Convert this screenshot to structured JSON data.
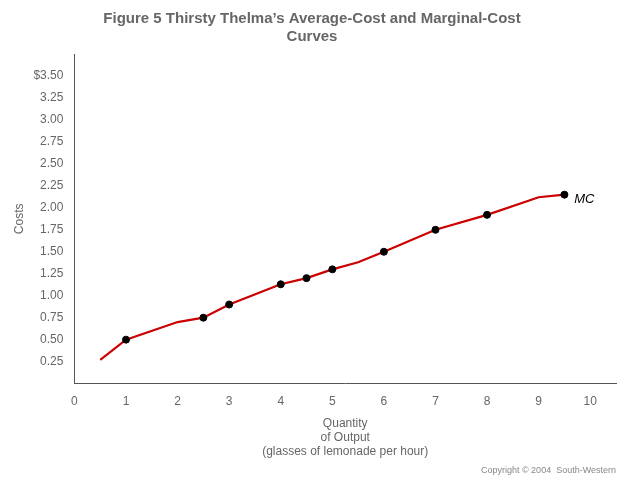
{
  "chart_data": {
    "type": "line",
    "title": "Figure 5 Thirsty Thelma’s Average-Cost and Marginal-Cost\nCurves",
    "ylabel": "Costs",
    "xlabel": [
      "Quantity",
      "of Output",
      "(glasses of lemonade per hour)"
    ],
    "footnote": "Copyright © 2004  South-Western",
    "series": [
      {
        "type": "line",
        "color": "#cc0000",
        "x": [
          0.5,
          1,
          2,
          2.5,
          3,
          4,
          4.5,
          5,
          5.5,
          6,
          7,
          8,
          9,
          9.5
        ],
        "values": [
          0.27,
          0.5,
          0.7,
          0.75,
          0.9,
          1.13,
          1.2,
          1.3,
          1.38,
          1.5,
          1.75,
          1.92,
          2.12,
          2.15
        ]
      },
      {
        "type": "scatter",
        "color": "#000000",
        "x": [
          1,
          2.5,
          3,
          4,
          4.5,
          5,
          6,
          7,
          8,
          9.5
        ],
        "values": [
          0.5,
          0.75,
          0.9,
          1.13,
          1.2,
          1.3,
          1.5,
          1.75,
          1.92,
          2.15
        ]
      }
    ],
    "annotations": [
      {
        "text": "MC",
        "x": 9.65,
        "y": 2.1
      }
    ],
    "xlim": [
      0,
      10.5
    ],
    "ylim": [
      0,
      3.75
    ],
    "xticks": [
      0,
      1,
      2,
      3,
      4,
      5,
      6,
      7,
      8,
      9,
      10
    ],
    "yticks": [
      0.25,
      {
        "value": 0.5,
        "label": "0.50"
      },
      0.75,
      {
        "value": 1.0,
        "label": "1.00"
      },
      1.25,
      {
        "value": 1.5,
        "label": "1.50"
      },
      1.75,
      {
        "value": 2.0,
        "label": "2.00"
      },
      2.25,
      {
        "value": 2.5,
        "label": "2.50"
      },
      2.75,
      {
        "value": 3.0,
        "label": "3.00"
      },
      3.25,
      {
        "value": 3.5,
        "label": "$3.50"
      }
    ],
    "grid": false
  }
}
